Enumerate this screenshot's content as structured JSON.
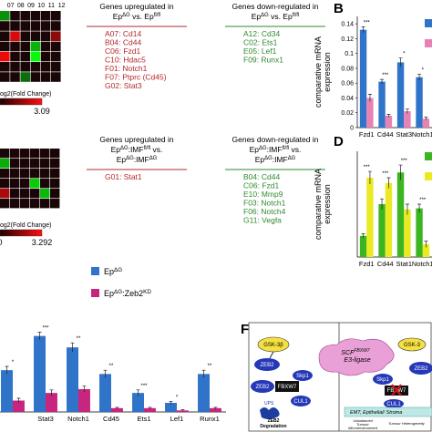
{
  "heatmaps": [
    {
      "col_labels": [
        "07",
        "08",
        "09",
        "10",
        "11",
        "12"
      ],
      "cells": [
        [
          -1.5,
          0,
          0,
          0,
          0,
          0
        ],
        [
          0,
          0,
          0,
          0,
          0,
          0
        ],
        [
          0,
          2.5,
          0,
          0,
          0,
          1.5
        ],
        [
          0,
          0,
          0,
          -2,
          0,
          0
        ],
        [
          2.8,
          0,
          0,
          -3,
          0,
          0
        ],
        [
          0,
          0,
          0,
          0,
          0,
          0
        ],
        [
          0,
          0,
          -1,
          0,
          0,
          0
        ]
      ],
      "colorbar_label": "og2(Fold Change)",
      "clim": [
        0,
        3.09
      ],
      "colorbar_ticks": [
        3.09
      ]
    },
    {
      "cells": [
        [
          0,
          0,
          0,
          0,
          0,
          0
        ],
        [
          -2,
          0,
          0,
          0,
          0,
          0
        ],
        [
          0,
          0,
          0,
          0,
          0,
          0
        ],
        [
          0,
          0,
          0,
          -2.5,
          0,
          0
        ],
        [
          2,
          0,
          0,
          0,
          -2.2,
          0
        ],
        [
          0,
          0,
          0,
          0,
          0,
          0
        ]
      ],
      "colorbar_label": "og2(Fold Change)",
      "clim": [
        0,
        3.292
      ],
      "colorbar_ticks": [
        0,
        3.292
      ]
    }
  ],
  "gene_lists": [
    {
      "heading": [
        [
          {
            "t": "Genes upregulated in"
          }
        ],
        [
          {
            "t": "Ep"
          },
          {
            "sup": "ΔG"
          },
          {
            "t": " vs. Ep"
          },
          {
            "sup": "fl/fl"
          }
        ]
      ],
      "color": "#b5282e",
      "genes": [
        "A07: Cd14",
        "B04: Cd44",
        "C06: Fzd1",
        "C10: Hdac5",
        "F01: Notch1",
        "F07: Ptprc (Cd45)",
        "G02: Stat3"
      ]
    },
    {
      "heading": [
        [
          {
            "t": "Genes down-regulated in"
          }
        ],
        [
          {
            "t": "Ep"
          },
          {
            "sup": "ΔG"
          },
          {
            "t": " vs. Ep"
          },
          {
            "sup": "fl/fl"
          }
        ]
      ],
      "color": "#2f8a2f",
      "genes": [
        "A12: Cd34",
        "C02: Ets1",
        "E05: Lef1",
        "F09: Runx1"
      ]
    },
    {
      "heading": [
        [
          {
            "t": "Genes upregulated in"
          }
        ],
        [
          {
            "t": "Ep"
          },
          {
            "sup": "ΔG"
          },
          {
            "t": ":IMF"
          },
          {
            "sup": "fl/fl"
          },
          {
            "t": " vs."
          }
        ],
        [
          {
            "t": "Ep"
          },
          {
            "sup": "ΔG"
          },
          {
            "t": ":IMF"
          },
          {
            "sup": "ΔG"
          }
        ]
      ],
      "color": "#b5282e",
      "genes": [
        "G01: Stat1"
      ]
    },
    {
      "heading": [
        [
          {
            "t": "Genes down-regulated in"
          }
        ],
        [
          {
            "t": "Ep"
          },
          {
            "sup": "ΔG"
          },
          {
            "t": ":IMF"
          },
          {
            "sup": "fl/fl"
          },
          {
            "t": " vs."
          }
        ],
        [
          {
            "t": "Ep"
          },
          {
            "sup": "ΔG"
          },
          {
            "t": ":IMF"
          },
          {
            "sup": "ΔG"
          }
        ]
      ],
      "color": "#2f8a2f",
      "genes": [
        "B04: Cd44",
        "C06: Fzd1",
        "E10: Mmp9",
        "F03: Notch1",
        "F06: Notch4",
        "G11: Vegfa"
      ]
    }
  ],
  "panel_labels": [
    "B",
    "D",
    "F"
  ],
  "chart_data": [
    {
      "type": "bar",
      "ylabel": [
        "comparative mRNA",
        "expression"
      ],
      "categories": [
        "Fzd1",
        "Cd44",
        "Stat3",
        "Notch1"
      ],
      "series": [
        {
          "color": "#2f74c9",
          "values": [
            0.132,
            0.062,
            0.088,
            0.068
          ],
          "errors": [
            0.004,
            0.003,
            0.006,
            0.004
          ]
        },
        {
          "color": "#e882b4",
          "values": [
            0.04,
            0.016,
            0.022,
            0.012
          ],
          "errors": [
            0.005,
            0.002,
            0.003,
            0.002
          ]
        }
      ],
      "annotations": [
        "***",
        "***",
        "*",
        "*"
      ],
      "ylim": [
        0,
        0.15
      ],
      "yticks": [
        0,
        0.02,
        0.04,
        0.06,
        0.08,
        0.1,
        0.12,
        0.14
      ]
    },
    {
      "type": "bar",
      "ylabel": [
        "comparative mRNA",
        "expression"
      ],
      "categories": [
        "Fzd1",
        "Cd44",
        "Stat1",
        "Notch1"
      ],
      "series": [
        {
          "color": "#3cb521",
          "values": [
            0.2,
            0.5,
            0.8,
            0.46
          ],
          "errors": [
            0.02,
            0.05,
            0.07,
            0.04
          ]
        },
        {
          "color": "#eaea22",
          "values": [
            0.75,
            0.7,
            0.45,
            0.12
          ],
          "errors": [
            0.06,
            0.05,
            0.05,
            0.03
          ]
        }
      ],
      "annotations": [
        "***",
        "***",
        "***",
        "***"
      ],
      "ylim": [
        0,
        1
      ]
    },
    {
      "type": "bar",
      "categories": [
        null,
        "Stat3",
        "Notch1",
        "Cd45",
        "Ets1",
        "Lef1",
        "Runx1"
      ],
      "series": [
        {
          "name": [
            {
              "t": "Ep"
            },
            {
              "sup": "ΔG"
            }
          ],
          "color": "#2f74c9",
          "values": [
            0.55,
            1.0,
            0.85,
            0.5,
            0.25,
            0.12,
            0.5
          ],
          "errors": [
            0.05,
            0.05,
            0.06,
            0.05,
            0.04,
            0.02,
            0.05
          ]
        },
        {
          "name": [
            {
              "t": "Ep"
            },
            {
              "sup": "ΔG"
            },
            {
              "t": ":Zeb2"
            },
            {
              "sup": "KD"
            }
          ],
          "color": "#c8267e",
          "values": [
            0.15,
            0.25,
            0.3,
            0.05,
            0.05,
            0.02,
            0.05
          ],
          "errors": [
            0.03,
            0.04,
            0.04,
            0.01,
            0.01,
            0.01,
            0.01
          ]
        }
      ],
      "annotations": [
        "*",
        "***",
        "**",
        "**",
        "***",
        "*",
        "**"
      ],
      "ylim": [
        0,
        1.2
      ]
    }
  ],
  "diagram": {
    "gsk_left": "GSK-3β",
    "zeb2_a": "ZEB2",
    "zeb2_b": "ZEB2",
    "skp1": "Skp1",
    "fbxw7": "FBXW7",
    "cul1": "CUL1",
    "ups": "UPS",
    "degradation": [
      "ZEB2",
      "Degradation"
    ],
    "scf": [
      "SCF",
      "FBXW7",
      "E3-ligase"
    ],
    "gsk_right": "GSK-3",
    "zeb2_right": "ZEB2",
    "skp1_right": "Skp1",
    "fbxw7_right": "FBXW7",
    "cul1_right": "CUL1",
    "emt": "EMT, Epithelial/ Stroma",
    "out1": [
      "Unbalanced",
      "Tumour",
      "Microenvironment"
    ],
    "out2": "Tumour Heterogeneity"
  }
}
